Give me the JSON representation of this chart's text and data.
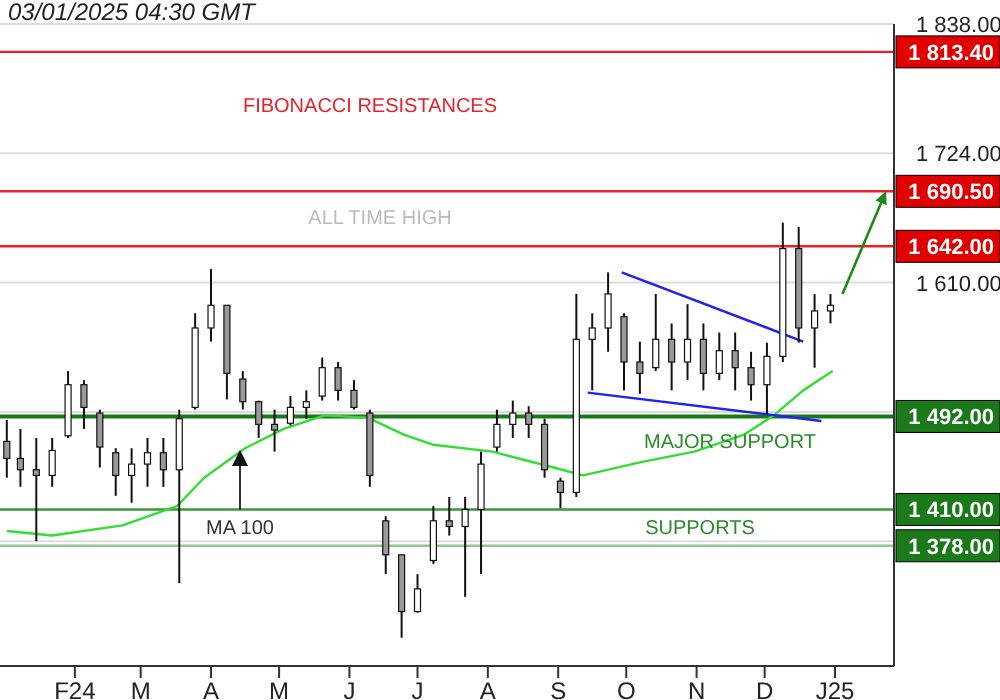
{
  "chart_data": {
    "type": "candlestick",
    "x": [
      "2024-01-02",
      "2024-01-08",
      "2024-01-15",
      "2024-01-22",
      "2024-01-29",
      "2024-02-05",
      "2024-02-12",
      "2024-02-19",
      "2024-02-26",
      "2024-03-04",
      "2024-03-11",
      "2024-03-18",
      "2024-03-25",
      "2024-04-01",
      "2024-04-08",
      "2024-04-15",
      "2024-04-22",
      "2024-04-29",
      "2024-05-06",
      "2024-05-13",
      "2024-05-20",
      "2024-05-27",
      "2024-06-03",
      "2024-06-10",
      "2024-06-17",
      "2024-06-24",
      "2024-07-01",
      "2024-07-08",
      "2024-07-15",
      "2024-07-22",
      "2024-07-29",
      "2024-08-05",
      "2024-08-12",
      "2024-08-19",
      "2024-08-26",
      "2024-09-02",
      "2024-09-09",
      "2024-09-16",
      "2024-09-23",
      "2024-09-30",
      "2024-10-07",
      "2024-10-14",
      "2024-10-21",
      "2024-10-28",
      "2024-11-04",
      "2024-11-11",
      "2024-11-18",
      "2024-11-25",
      "2024-12-02",
      "2024-12-09",
      "2024-12-16",
      "2024-12-23",
      "2024-12-30"
    ],
    "ohlc": [
      [
        1470,
        1489,
        1438,
        1455
      ],
      [
        1455,
        1481,
        1430,
        1445
      ],
      [
        1445,
        1473,
        1382,
        1440
      ],
      [
        1440,
        1473,
        1430,
        1462
      ],
      [
        1475,
        1532,
        1473,
        1520
      ],
      [
        1520,
        1524,
        1481,
        1500
      ],
      [
        1495,
        1498,
        1447,
        1465
      ],
      [
        1460,
        1464,
        1422,
        1440
      ],
      [
        1440,
        1464,
        1416,
        1450
      ],
      [
        1450,
        1473,
        1430,
        1460
      ],
      [
        1460,
        1473,
        1430,
        1445
      ],
      [
        1445,
        1498,
        1345,
        1490
      ],
      [
        1500,
        1583,
        1498,
        1570
      ],
      [
        1570,
        1622,
        1558,
        1590
      ],
      [
        1590,
        1590,
        1507,
        1530
      ],
      [
        1525,
        1532,
        1498,
        1505
      ],
      [
        1505,
        1506,
        1473,
        1485
      ],
      [
        1485,
        1498,
        1461,
        1480
      ],
      [
        1486,
        1510,
        1484,
        1500
      ],
      [
        1500,
        1515,
        1490,
        1505
      ],
      [
        1510,
        1544,
        1506,
        1535
      ],
      [
        1535,
        1540,
        1506,
        1515
      ],
      [
        1515,
        1524,
        1498,
        1500
      ],
      [
        1495,
        1498,
        1430,
        1440
      ],
      [
        1400,
        1404,
        1353,
        1370
      ],
      [
        1370,
        1370,
        1297,
        1320
      ],
      [
        1320,
        1353,
        1319,
        1340
      ],
      [
        1365,
        1413,
        1362,
        1400
      ],
      [
        1400,
        1421,
        1387,
        1395
      ],
      [
        1395,
        1421,
        1333,
        1410
      ],
      [
        1410,
        1461,
        1353,
        1450
      ],
      [
        1465,
        1498,
        1461,
        1485
      ],
      [
        1485,
        1506,
        1473,
        1495
      ],
      [
        1495,
        1501,
        1473,
        1485
      ],
      [
        1485,
        1490,
        1438,
        1445
      ],
      [
        1435,
        1438,
        1411,
        1425
      ],
      [
        1425,
        1600,
        1421,
        1560
      ],
      [
        1560,
        1583,
        1515,
        1570
      ],
      [
        1570,
        1619,
        1549,
        1600
      ],
      [
        1580,
        1583,
        1515,
        1540
      ],
      [
        1540,
        1558,
        1512,
        1530
      ],
      [
        1535,
        1600,
        1532,
        1560
      ],
      [
        1560,
        1574,
        1515,
        1540
      ],
      [
        1540,
        1591,
        1524,
        1560
      ],
      [
        1560,
        1574,
        1515,
        1530
      ],
      [
        1530,
        1566,
        1524,
        1550
      ],
      [
        1550,
        1566,
        1515,
        1535
      ],
      [
        1535,
        1549,
        1506,
        1520
      ],
      [
        1520,
        1557,
        1494,
        1545
      ],
      [
        1545,
        1663,
        1540,
        1640
      ],
      [
        1640,
        1659,
        1557,
        1570
      ],
      [
        1570,
        1600,
        1535,
        1585
      ],
      [
        1585,
        1600,
        1574,
        1590
      ]
    ],
    "series": [
      {
        "type": "line",
        "color": "#33dd33",
        "x": [
          "2024-01-02",
          "2024-01-22",
          "2024-02-22",
          "2024-03-17",
          "2024-03-29",
          "2024-04-16",
          "2024-05-03",
          "2024-05-21",
          "2024-06-09",
          "2024-06-25",
          "2024-07-08",
          "2024-08-03",
          "2024-08-30",
          "2024-09-12",
          "2024-10-08",
          "2024-10-31",
          "2024-11-22",
          "2024-12-05",
          "2024-12-18",
          "2024-12-31"
        ],
        "values": [
          1391,
          1387,
          1396,
          1413,
          1438,
          1464,
          1481,
          1493,
          1491,
          1476,
          1467,
          1461,
          1447,
          1440,
          1452,
          1461,
          1476,
          1493,
          1515,
          1532
        ]
      },
      {
        "type": "line",
        "color": "#2222ee",
        "x": [
          "2024-09-29",
          "2024-12-18"
        ],
        "values": [
          1619,
          1558
        ]
      },
      {
        "type": "line",
        "color": "#2222ee",
        "x": [
          "2024-09-14",
          "2024-12-26"
        ],
        "values": [
          1513,
          1488
        ]
      }
    ],
    "xlim": [
      "2023-12-30",
      "2025-01-27"
    ],
    "xticks": [
      {
        "value": "2024-02-01",
        "label": "F24"
      },
      {
        "value": "2024-03-01",
        "label": "M"
      },
      {
        "value": "2024-04-01",
        "label": "A"
      },
      {
        "value": "2024-05-01",
        "label": "M"
      },
      {
        "value": "2024-06-01",
        "label": "J"
      },
      {
        "value": "2024-07-01",
        "label": "J"
      },
      {
        "value": "2024-08-01",
        "label": "A"
      },
      {
        "value": "2024-09-01",
        "label": "S"
      },
      {
        "value": "2024-10-01",
        "label": "O"
      },
      {
        "value": "2024-11-01",
        "label": "N"
      },
      {
        "value": "2024-12-01",
        "label": "D"
      },
      {
        "value": "2025-01-01",
        "label": "J25"
      }
    ],
    "ylim": [
      1272,
      1838
    ],
    "yticks": [
      {
        "value": 1382,
        "label": null
      },
      {
        "value": 1496,
        "label": null
      },
      {
        "value": 1610,
        "label": "1 610.00"
      },
      {
        "value": 1724,
        "label": "1 724.00"
      },
      {
        "value": 1838,
        "label": "1 838.00"
      }
    ],
    "grid": "y",
    "ref_lines": [
      {
        "axis": "y",
        "value": 1813.4,
        "label": "1 813.40",
        "color": "#e8202a"
      },
      {
        "axis": "y",
        "value": 1690.5,
        "label": "1 690.50",
        "color": "#e8202a"
      },
      {
        "axis": "y",
        "value": 1642,
        "label": "1 642.00",
        "color": "#e8202a"
      },
      {
        "axis": "y",
        "value": 1492,
        "label": "1 492.00",
        "color": "#1a7a1a"
      },
      {
        "axis": "y",
        "value": 1410,
        "label": "1 410.00",
        "color": "#3a9a3a"
      },
      {
        "axis": "y",
        "value": 1378,
        "label": "1 378.00",
        "color": "#90c890"
      }
    ],
    "annotations": [
      "03/01/2025 04:30 GMT",
      "FIBONACCI RESISTANCES",
      "ALL TIME HIGH",
      "MAJOR SUPPORT",
      "SUPPORTS",
      "MA 100"
    ]
  }
}
